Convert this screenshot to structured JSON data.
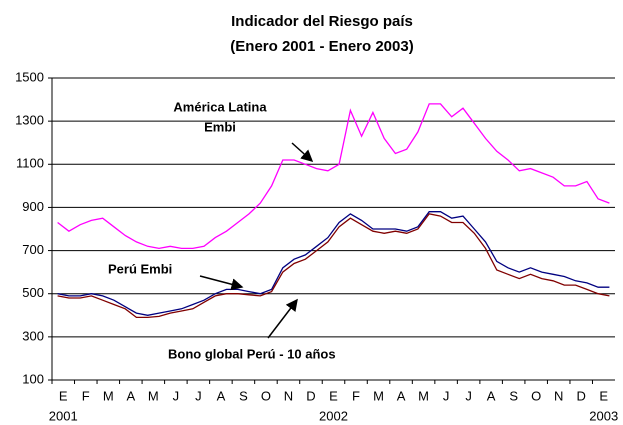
{
  "chart_data": {
    "type": "line",
    "title": "Indicador del Riesgo país",
    "subtitle": "(Enero 2001 - Enero 2003)",
    "categories": [
      "E",
      null,
      "F",
      null,
      "M",
      null,
      "A",
      null,
      "M",
      null,
      "J",
      null,
      "J",
      null,
      "A",
      null,
      "S",
      null,
      "O",
      null,
      "N",
      null,
      "D",
      null,
      "E",
      null,
      "F",
      null,
      "M",
      null,
      "A",
      null,
      "M",
      null,
      "J",
      null,
      "J",
      null,
      "A",
      null,
      "S",
      null,
      "O",
      null,
      "N",
      null,
      "D",
      null,
      "E",
      null
    ],
    "year_labels": [
      "2001",
      "2002",
      "2003"
    ],
    "ylim": [
      100,
      1500
    ],
    "yticks": [
      100,
      300,
      500,
      700,
      900,
      1100,
      1300,
      1500
    ],
    "grid": true,
    "series": [
      {
        "color": "#ff00ff",
        "values": [
          830,
          790,
          820,
          840,
          850,
          810,
          770,
          740,
          720,
          710,
          720,
          710,
          710,
          720,
          760,
          790,
          830,
          870,
          920,
          1000,
          1120,
          1120,
          1100,
          1080,
          1070,
          1100,
          1350,
          1230,
          1340,
          1220,
          1150,
          1170,
          1250,
          1380,
          1380,
          1320,
          1360,
          1290,
          1220,
          1160,
          1120,
          1070,
          1080,
          1060,
          1040,
          1000,
          1000,
          1020,
          940,
          920
        ]
      },
      {
        "color": "#000080",
        "values": [
          500,
          490,
          490,
          500,
          490,
          470,
          440,
          410,
          400,
          410,
          420,
          430,
          450,
          470,
          500,
          520,
          520,
          510,
          500,
          520,
          620,
          660,
          680,
          720,
          760,
          830,
          870,
          840,
          800,
          800,
          800,
          790,
          810,
          880,
          880,
          850,
          860,
          800,
          740,
          650,
          620,
          600,
          620,
          600,
          590,
          580,
          560,
          550,
          530,
          530
        ]
      },
      {
        "color": "#800000",
        "values": [
          490,
          480,
          480,
          490,
          470,
          450,
          430,
          390,
          390,
          395,
          410,
          420,
          430,
          460,
          490,
          500,
          500,
          495,
          490,
          510,
          600,
          640,
          660,
          700,
          740,
          810,
          850,
          820,
          790,
          780,
          790,
          780,
          800,
          870,
          860,
          830,
          830,
          780,
          710,
          610,
          590,
          570,
          590,
          570,
          560,
          540,
          540,
          520,
          500,
          490
        ]
      }
    ],
    "annotations": [
      {
        "lines": [
          "América Latina",
          "Embi"
        ]
      },
      {
        "lines": [
          "Perú  Embi"
        ]
      },
      {
        "lines": [
          "Bono global Perú  - 10 años"
        ]
      }
    ]
  }
}
